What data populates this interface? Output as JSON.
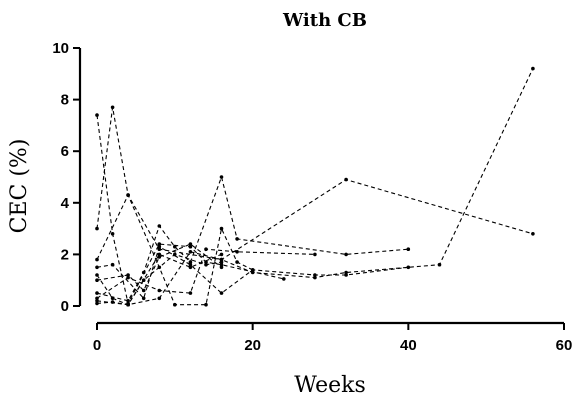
{
  "chart_data": {
    "type": "line",
    "title": "With CB",
    "xlabel": "Weeks",
    "ylabel": "CEC (%)",
    "xlim": [
      0,
      60
    ],
    "ylim": [
      0,
      10
    ],
    "x_ticks": [
      0,
      20,
      40,
      60
    ],
    "y_ticks": [
      0,
      2,
      4,
      6,
      8,
      10
    ],
    "grid": false,
    "legend": "none",
    "line_style": "dashed",
    "marker": "dot",
    "color": "#000000",
    "series": [
      {
        "x": [
          0,
          4,
          8,
          12,
          16,
          20,
          28,
          32,
          44,
          56
        ],
        "y": [
          0.2,
          0.05,
          0.3,
          2.1,
          1.8,
          1.3,
          1.1,
          1.3,
          1.6,
          9.2
        ]
      },
      {
        "x": [
          0,
          2,
          4,
          8,
          16,
          32,
          56
        ],
        "y": [
          3.0,
          7.7,
          4.3,
          2.2,
          1.8,
          4.9,
          2.8
        ]
      },
      {
        "x": [
          0,
          2,
          4,
          8,
          12,
          14,
          16,
          24
        ],
        "y": [
          7.4,
          2.8,
          0.1,
          2.4,
          2.3,
          1.7,
          1.6,
          1.05
        ]
      },
      {
        "x": [
          0,
          4,
          8,
          10,
          14,
          16,
          18,
          20
        ],
        "y": [
          1.8,
          4.3,
          1.5,
          0.05,
          0.05,
          3.0,
          1.7,
          1.4
        ]
      },
      {
        "x": [
          0,
          2,
          6,
          8,
          12,
          16,
          20,
          28,
          32,
          40
        ],
        "y": [
          1.5,
          1.6,
          0.3,
          2.3,
          1.6,
          0.5,
          1.4,
          1.2,
          1.2,
          1.5
        ]
      },
      {
        "x": [
          0,
          4,
          6,
          8,
          10,
          12,
          16,
          18,
          32,
          40
        ],
        "y": [
          0.5,
          0.2,
          1.3,
          3.1,
          2.3,
          1.7,
          5.0,
          2.6,
          2.0,
          2.2
        ]
      },
      {
        "x": [
          0,
          4,
          8,
          12,
          14,
          18,
          28
        ],
        "y": [
          0.3,
          1.1,
          0.6,
          0.5,
          2.2,
          2.1,
          2.0
        ]
      },
      {
        "x": [
          0,
          2,
          4,
          6,
          10,
          14,
          16
        ],
        "y": [
          0.1,
          0.15,
          0.05,
          1.0,
          2.0,
          1.6,
          1.7
        ]
      },
      {
        "x": [
          0,
          4,
          6,
          8,
          12,
          16
        ],
        "y": [
          1.0,
          1.2,
          0.6,
          1.9,
          2.4,
          1.5
        ]
      },
      {
        "x": [
          0,
          2,
          4,
          8,
          12,
          16
        ],
        "y": [
          1.2,
          0.3,
          0.05,
          2.0,
          1.5,
          2.0
        ]
      }
    ]
  }
}
